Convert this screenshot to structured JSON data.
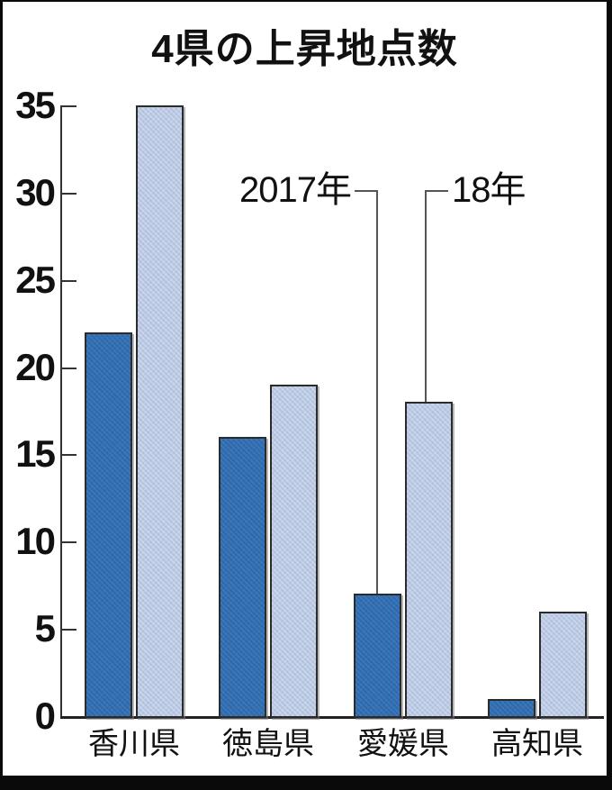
{
  "title": "4県の上昇地点数",
  "colors": {
    "bar_2017": "#2e6db4",
    "bar_2018": "#b9c9e4",
    "bar_outline": "#2b2b2b",
    "axis": "#333333",
    "background": "#ffffff",
    "frame": "#000000",
    "callout_line": "#555555"
  },
  "chart_data": {
    "type": "bar",
    "title": "4県の上昇地点数",
    "categories": [
      "香川県",
      "徳島県",
      "愛媛県",
      "高知県"
    ],
    "series": [
      {
        "name": "2017年",
        "values": [
          22,
          16,
          7,
          1
        ],
        "color": "#2e6db4"
      },
      {
        "name": "18年",
        "values": [
          35,
          19,
          18,
          6
        ],
        "color": "#b9c9e4"
      }
    ],
    "xlabel": "",
    "ylabel": "",
    "ylim": [
      0,
      35
    ],
    "yticks": [
      0,
      5,
      10,
      15,
      20,
      25,
      30,
      35
    ],
    "grid": false,
    "legend_position": "callout-labels-inside-plot",
    "annotations": [
      {
        "label": "2017年",
        "series_index": 0,
        "category_index": 2,
        "text_side": "left"
      },
      {
        "label": "18年",
        "series_index": 1,
        "category_index": 2,
        "text_side": "right"
      }
    ]
  }
}
